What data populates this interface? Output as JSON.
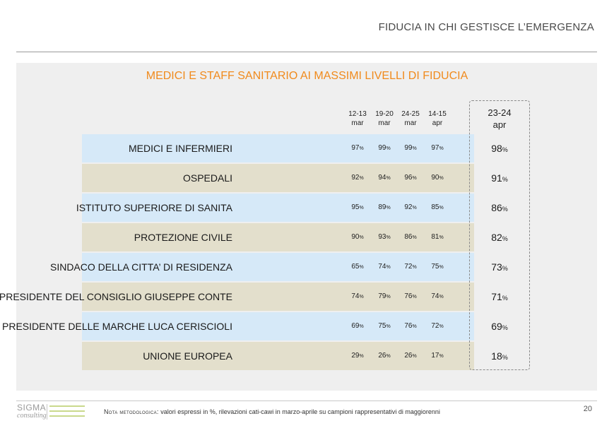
{
  "header": {
    "title": "FIDUCIA IN CHI GESTISCE L’EMERGENZA"
  },
  "chart_data": {
    "type": "table",
    "title": "MEDICI E STAFF SANITARIO AI MASSIMI LIVELLI DI FIDUCIA",
    "unit": "%",
    "columns": [
      {
        "line1": "12-13",
        "line2": "mar"
      },
      {
        "line1": "19-20",
        "line2": "mar"
      },
      {
        "line1": "24-25",
        "line2": "mar"
      },
      {
        "line1": "14-15",
        "line2": "apr"
      },
      {
        "line1": "23-24",
        "line2": "apr"
      }
    ],
    "rows": [
      {
        "label": "MEDICI E INFERMIERI",
        "values": [
          97,
          99,
          99,
          97,
          98
        ],
        "color": "#d6e9f8"
      },
      {
        "label": "OSPEDALI",
        "values": [
          92,
          94,
          96,
          90,
          91
        ],
        "color": "#e3dfcc"
      },
      {
        "label": "ISTITUTO SUPERIORE DI SANITA",
        "values": [
          95,
          89,
          92,
          85,
          86
        ],
        "color": "#d6e9f8"
      },
      {
        "label": "PROTEZIONE CIVILE",
        "values": [
          90,
          93,
          86,
          81,
          82
        ],
        "color": "#e3dfcc"
      },
      {
        "label": "SINDACO DELLA CITTA’ DI RESIDENZA",
        "values": [
          65,
          74,
          72,
          75,
          73
        ],
        "color": "#d6e9f8"
      },
      {
        "label": "PRESIDENTE DEL CONSIGLIO GIUSEPPE CONTE",
        "values": [
          74,
          79,
          76,
          74,
          71
        ],
        "color": "#e3dfcc"
      },
      {
        "label": "PRESIDENTE DELLE MARCHE LUCA CERISCIOLI",
        "values": [
          69,
          75,
          76,
          72,
          69
        ],
        "color": "#d6e9f8"
      },
      {
        "label": "UNIONE EUROPEA",
        "values": [
          29,
          26,
          26,
          17,
          18
        ],
        "color": "#e3dfcc"
      }
    ],
    "highlight_column": 4
  },
  "colors": {
    "title_accent": "#f08a1c",
    "row_blue": "#d6e9f8",
    "row_beige": "#e3dfcc",
    "panel": "#efefef"
  },
  "footer": {
    "logo_main": "SIGMA",
    "logo_sub": "consulting",
    "note_label": "Nota metodologica:",
    "note_text": " valori espressi in %, rilevazioni cati-cawi in marzo-aprile su campioni rappresentativi di maggiorenni",
    "page_number": "20"
  }
}
